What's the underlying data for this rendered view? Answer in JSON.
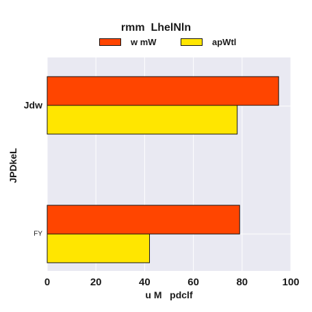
{
  "chart_data": {
    "type": "bar",
    "orientation": "horizontal",
    "title": "rmm  LhelNln",
    "categories": [
      "Jdw",
      "FY"
    ],
    "series": [
      {
        "name": "w mW",
        "values": [
          95,
          79
        ],
        "color": "#ff4500"
      },
      {
        "name": "apWtl",
        "values": [
          78,
          42
        ],
        "color": "#ffe600"
      }
    ],
    "xlabel": "u M   pdclf",
    "ylabel": "JPDkeL",
    "xlim": [
      0,
      100
    ],
    "xticks": [
      "0",
      "20",
      "40",
      "60",
      "80",
      "100"
    ],
    "grid": true,
    "legend_position": "top",
    "plot_background": "#e9e9f2",
    "grid_color": "#ffffff"
  }
}
